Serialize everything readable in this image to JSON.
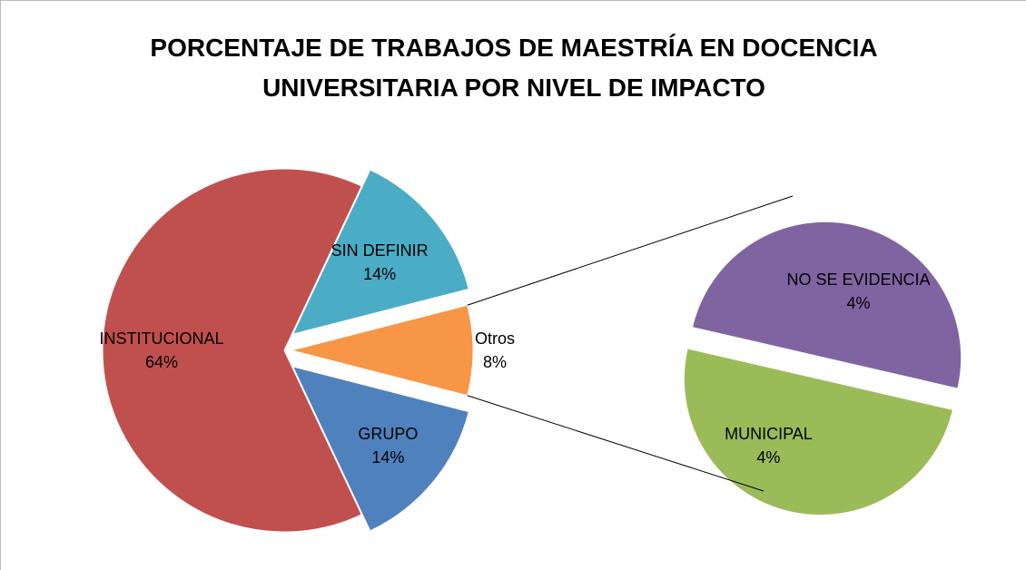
{
  "chart_data": {
    "type": "pie",
    "title": "PORCENTAJE DE TRABAJOS DE MAESTRÍA EN DOCENCIA UNIVERSITARIA POR NIVEL DE IMPACTO",
    "categories": [
      "Otros",
      "SIN DEFINIR",
      "INSTITUCIONAL",
      "GRUPO"
    ],
    "values": [
      8,
      14,
      64,
      14
    ],
    "value_labels": [
      "8%",
      "14%",
      "64%",
      "14%"
    ],
    "colors": [
      "#f79646",
      "#4bacc6",
      "#c0504d",
      "#4f81bd"
    ],
    "secondary": {
      "categories": [
        "NO SE EVIDENCIA",
        "MUNICIPAL"
      ],
      "values": [
        4,
        4
      ],
      "value_labels": [
        "4%",
        "4%"
      ],
      "colors": [
        "#8064a2",
        "#9bbb59"
      ]
    }
  }
}
